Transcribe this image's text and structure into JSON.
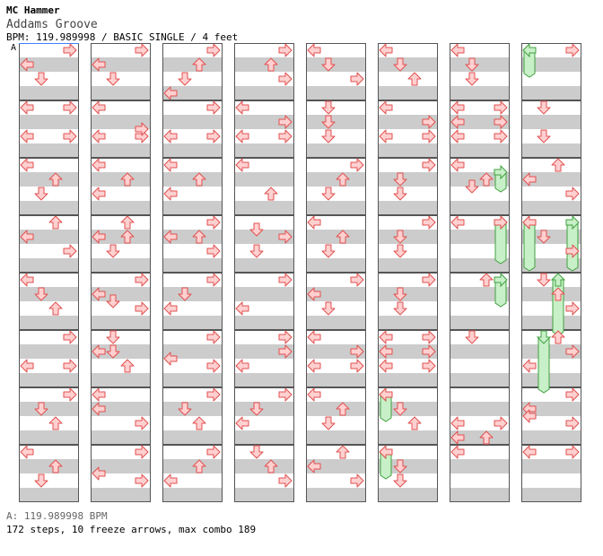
{
  "header": {
    "artist": "MC Hammer",
    "title": "Addams Groove",
    "info": "BPM: 119.989998 / BASIC SINGLE / 4 feet",
    "marker": "A"
  },
  "footer": {
    "bpm_line": "A: 119.989998 BPM",
    "stats": "172 steps, 10 freeze arrows, max combo 189"
  },
  "colors": {
    "arrow_fill": "#ffd0d0",
    "arrow_stroke": "#e05050",
    "freeze_fill": "#c8f0c8",
    "freeze_stroke": "#40a040",
    "stripe": "#cccccc",
    "marker_line": "#4080ff"
  },
  "chart_data": {
    "type": "table",
    "lanes": [
      "left",
      "down",
      "up",
      "right"
    ],
    "columns": 8,
    "measures_per_column": 8,
    "beats_per_measure": 4,
    "notes": [
      {
        "m": 0,
        "b": 0,
        "d": "right"
      },
      {
        "m": 0,
        "b": 0.5,
        "d": "left"
      },
      {
        "m": 0,
        "b": 1,
        "d": "down"
      },
      {
        "m": 1,
        "b": 0,
        "d": "left"
      },
      {
        "m": 1,
        "b": 0,
        "d": "right"
      },
      {
        "m": 1,
        "b": 1,
        "d": "left"
      },
      {
        "m": 1,
        "b": 1,
        "d": "right"
      },
      {
        "m": 2,
        "b": 0,
        "d": "left"
      },
      {
        "m": 2,
        "b": 0.5,
        "d": "up"
      },
      {
        "m": 2,
        "b": 1,
        "d": "down"
      },
      {
        "m": 3,
        "b": 0,
        "d": "up"
      },
      {
        "m": 3,
        "b": 0.5,
        "d": "left"
      },
      {
        "m": 3,
        "b": 1,
        "d": "right"
      },
      {
        "m": 4,
        "b": 0,
        "d": "left"
      },
      {
        "m": 4,
        "b": 0.5,
        "d": "down"
      },
      {
        "m": 4,
        "b": 1,
        "d": "up"
      },
      {
        "m": 5,
        "b": 0,
        "d": "right"
      },
      {
        "m": 5,
        "b": 1,
        "d": "left"
      },
      {
        "m": 5,
        "b": 1,
        "d": "right"
      },
      {
        "m": 6,
        "b": 0,
        "d": "right"
      },
      {
        "m": 6,
        "b": 0.5,
        "d": "down"
      },
      {
        "m": 6,
        "b": 1,
        "d": "up"
      },
      {
        "m": 7,
        "b": 0,
        "d": "left"
      },
      {
        "m": 7,
        "b": 0.5,
        "d": "up"
      },
      {
        "m": 7,
        "b": 1,
        "d": "down"
      },
      {
        "m": 8,
        "b": 0,
        "d": "right"
      },
      {
        "m": 8,
        "b": 0.5,
        "d": "left"
      },
      {
        "m": 8,
        "b": 1,
        "d": "down"
      },
      {
        "m": 9,
        "b": 0,
        "d": "left"
      },
      {
        "m": 9,
        "b": 1,
        "d": "left"
      },
      {
        "m": 9,
        "b": 1,
        "d": "right"
      },
      {
        "m": 9,
        "b": 0.75,
        "d": "right"
      },
      {
        "m": 10,
        "b": 0,
        "d": "left"
      },
      {
        "m": 10,
        "b": 0.5,
        "d": "up"
      },
      {
        "m": 10,
        "b": 1,
        "d": "left"
      },
      {
        "m": 11,
        "b": 0,
        "d": "up"
      },
      {
        "m": 11,
        "b": 0.5,
        "d": "up"
      },
      {
        "m": 11,
        "b": 1,
        "d": "down"
      },
      {
        "m": 11,
        "b": 0.5,
        "d": "left"
      },
      {
        "m": 12,
        "b": 0,
        "d": "right"
      },
      {
        "m": 12,
        "b": 0.5,
        "d": "left"
      },
      {
        "m": 12,
        "b": 0.75,
        "d": "down"
      },
      {
        "m": 12,
        "b": 1,
        "d": "right"
      },
      {
        "m": 13,
        "b": 0,
        "d": "down"
      },
      {
        "m": 13,
        "b": 0.5,
        "d": "down"
      },
      {
        "m": 13,
        "b": 1,
        "d": "up"
      },
      {
        "m": 13,
        "b": 0.5,
        "d": "left"
      },
      {
        "m": 14,
        "b": 0,
        "d": "left"
      },
      {
        "m": 14,
        "b": 0.5,
        "d": "left"
      },
      {
        "m": 14,
        "b": 1,
        "d": "right"
      },
      {
        "m": 15,
        "b": 0,
        "d": "right"
      },
      {
        "m": 15,
        "b": 1,
        "d": "right"
      },
      {
        "m": 15,
        "b": 0.75,
        "d": "left"
      },
      {
        "m": 16,
        "b": 0,
        "d": "right"
      },
      {
        "m": 16,
        "b": 0.5,
        "d": "up"
      },
      {
        "m": 16,
        "b": 1,
        "d": "down"
      },
      {
        "m": 16,
        "b": 1.5,
        "d": "left"
      },
      {
        "m": 17,
        "b": 0,
        "d": "right"
      },
      {
        "m": 17,
        "b": 1,
        "d": "left"
      },
      {
        "m": 17,
        "b": 1,
        "d": "right"
      },
      {
        "m": 18,
        "b": 0,
        "d": "left"
      },
      {
        "m": 18,
        "b": 0.5,
        "d": "up"
      },
      {
        "m": 18,
        "b": 1,
        "d": "left"
      },
      {
        "m": 19,
        "b": 0,
        "d": "right"
      },
      {
        "m": 19,
        "b": 0.5,
        "d": "up"
      },
      {
        "m": 19,
        "b": 1,
        "d": "right"
      },
      {
        "m": 19,
        "b": 0.5,
        "d": "left"
      },
      {
        "m": 20,
        "b": 0,
        "d": "right"
      },
      {
        "m": 20,
        "b": 0.5,
        "d": "down"
      },
      {
        "m": 20,
        "b": 1,
        "d": "left"
      },
      {
        "m": 21,
        "b": 0,
        "d": "right"
      },
      {
        "m": 21,
        "b": 0.75,
        "d": "left"
      },
      {
        "m": 21,
        "b": 1,
        "d": "right"
      },
      {
        "m": 22,
        "b": 0,
        "d": "right"
      },
      {
        "m": 22,
        "b": 0.5,
        "d": "down"
      },
      {
        "m": 22,
        "b": 1,
        "d": "up"
      },
      {
        "m": 23,
        "b": 0,
        "d": "right"
      },
      {
        "m": 23,
        "b": 0.5,
        "d": "up"
      },
      {
        "m": 23,
        "b": 1,
        "d": "left"
      },
      {
        "m": 24,
        "b": 0,
        "d": "right"
      },
      {
        "m": 24,
        "b": 0.5,
        "d": "up"
      },
      {
        "m": 24,
        "b": 1,
        "d": "right"
      },
      {
        "m": 25,
        "b": 0,
        "d": "left"
      },
      {
        "m": 25,
        "b": 1,
        "d": "left"
      },
      {
        "m": 25,
        "b": 1,
        "d": "right"
      },
      {
        "m": 25,
        "b": 0.5,
        "d": "right"
      },
      {
        "m": 26,
        "b": 0,
        "d": "left"
      },
      {
        "m": 26,
        "b": 1,
        "d": "up"
      },
      {
        "m": 27,
        "b": 0.25,
        "d": "down"
      },
      {
        "m": 27,
        "b": 0.5,
        "d": "right"
      },
      {
        "m": 27,
        "b": 1,
        "d": "down"
      },
      {
        "m": 28,
        "b": 0,
        "d": "right"
      },
      {
        "m": 28,
        "b": 1,
        "d": "left"
      },
      {
        "m": 29,
        "b": 0,
        "d": "right"
      },
      {
        "m": 29,
        "b": 1,
        "d": "left"
      },
      {
        "m": 29,
        "b": 0.5,
        "d": "right"
      },
      {
        "m": 30,
        "b": 0,
        "d": "right"
      },
      {
        "m": 30,
        "b": 0.5,
        "d": "down"
      },
      {
        "m": 30,
        "b": 1,
        "d": "left"
      },
      {
        "m": 31,
        "b": 0,
        "d": "down"
      },
      {
        "m": 31,
        "b": 0.5,
        "d": "up"
      },
      {
        "m": 31,
        "b": 1,
        "d": "right"
      },
      {
        "m": 32,
        "b": 0,
        "d": "left"
      },
      {
        "m": 32,
        "b": 0.5,
        "d": "down"
      },
      {
        "m": 32,
        "b": 1,
        "d": "right"
      },
      {
        "m": 33,
        "b": 0,
        "d": "down"
      },
      {
        "m": 33,
        "b": 0.5,
        "d": "down"
      },
      {
        "m": 33,
        "b": 1,
        "d": "down"
      },
      {
        "m": 34,
        "b": 0,
        "d": "right"
      },
      {
        "m": 34,
        "b": 0.5,
        "d": "up"
      },
      {
        "m": 34,
        "b": 1,
        "d": "down"
      },
      {
        "m": 35,
        "b": 0,
        "d": "left"
      },
      {
        "m": 35,
        "b": 0.5,
        "d": "up"
      },
      {
        "m": 35,
        "b": 1,
        "d": "down"
      },
      {
        "m": 36,
        "b": 0,
        "d": "right"
      },
      {
        "m": 36,
        "b": 0.5,
        "d": "left"
      },
      {
        "m": 36,
        "b": 1,
        "d": "down"
      },
      {
        "m": 37,
        "b": 0,
        "d": "left"
      },
      {
        "m": 37,
        "b": 0.5,
        "d": "right"
      },
      {
        "m": 37,
        "b": 1,
        "d": "left"
      },
      {
        "m": 37,
        "b": 1,
        "d": "right"
      },
      {
        "m": 38,
        "b": 0,
        "d": "left"
      },
      {
        "m": 38,
        "b": 0.5,
        "d": "up"
      },
      {
        "m": 38,
        "b": 1,
        "d": "down"
      },
      {
        "m": 39,
        "b": 0,
        "d": "up"
      },
      {
        "m": 39,
        "b": 0.5,
        "d": "left"
      },
      {
        "m": 39,
        "b": 1,
        "d": "right"
      },
      {
        "m": 40,
        "b": 0,
        "d": "left"
      },
      {
        "m": 40,
        "b": 0.5,
        "d": "down"
      },
      {
        "m": 40,
        "b": 1,
        "d": "up"
      },
      {
        "m": 41,
        "b": 0,
        "d": "left"
      },
      {
        "m": 41,
        "b": 0.5,
        "d": "right"
      },
      {
        "m": 41,
        "b": 1,
        "d": "left"
      },
      {
        "m": 41,
        "b": 1,
        "d": "right"
      },
      {
        "m": 42,
        "b": 0,
        "d": "right"
      },
      {
        "m": 42,
        "b": 0.5,
        "d": "down"
      },
      {
        "m": 42,
        "b": 1,
        "d": "down"
      },
      {
        "m": 43,
        "b": 0,
        "d": "right"
      },
      {
        "m": 43,
        "b": 0.5,
        "d": "down"
      },
      {
        "m": 43,
        "b": 1,
        "d": "down"
      },
      {
        "m": 44,
        "b": 0,
        "d": "right"
      },
      {
        "m": 44,
        "b": 0.5,
        "d": "down"
      },
      {
        "m": 44,
        "b": 1,
        "d": "down"
      },
      {
        "m": 45,
        "b": 0,
        "d": "left"
      },
      {
        "m": 45,
        "b": 0,
        "d": "right"
      },
      {
        "m": 45,
        "b": 0.5,
        "d": "left"
      },
      {
        "m": 45,
        "b": 0.5,
        "d": "right"
      },
      {
        "m": 45,
        "b": 1,
        "d": "left"
      },
      {
        "m": 45,
        "b": 1,
        "d": "right"
      },
      {
        "m": 46,
        "b": 0,
        "d": "left"
      },
      {
        "m": 46,
        "b": 0.5,
        "d": "down"
      },
      {
        "m": 46,
        "b": 1,
        "d": "up"
      },
      {
        "m": 47,
        "b": 0,
        "d": "left"
      },
      {
        "m": 47,
        "b": 0.5,
        "d": "down"
      },
      {
        "m": 47,
        "b": 1,
        "d": "down"
      },
      {
        "m": 48,
        "b": 0,
        "d": "left"
      },
      {
        "m": 48,
        "b": 0.5,
        "d": "down"
      },
      {
        "m": 48,
        "b": 1,
        "d": "down"
      },
      {
        "m": 49,
        "b": 0,
        "d": "left"
      },
      {
        "m": 49,
        "b": 0,
        "d": "right"
      },
      {
        "m": 49,
        "b": 0.5,
        "d": "left"
      },
      {
        "m": 49,
        "b": 0.5,
        "d": "right"
      },
      {
        "m": 49,
        "b": 1,
        "d": "left"
      },
      {
        "m": 49,
        "b": 1,
        "d": "right"
      },
      {
        "m": 50,
        "b": 0,
        "d": "left"
      },
      {
        "m": 50,
        "b": 0.5,
        "d": "up"
      },
      {
        "m": 50,
        "b": 0.75,
        "d": "down"
      },
      {
        "m": 51,
        "b": 0,
        "d": "left"
      },
      {
        "m": 51,
        "b": 0,
        "d": "right"
      },
      {
        "m": 52,
        "b": 0,
        "d": "up"
      },
      {
        "m": 53,
        "b": 0,
        "d": "down"
      },
      {
        "m": 54,
        "b": 1,
        "d": "left"
      },
      {
        "m": 54,
        "b": 1,
        "d": "right"
      },
      {
        "m": 54,
        "b": 1.5,
        "d": "left"
      },
      {
        "m": 54,
        "b": 1.5,
        "d": "up"
      },
      {
        "m": 55,
        "b": 0,
        "d": "left"
      },
      {
        "m": 56,
        "b": 0,
        "d": "right"
      },
      {
        "m": 57,
        "b": 0,
        "d": "down"
      },
      {
        "m": 57,
        "b": 1,
        "d": "down"
      },
      {
        "m": 58,
        "b": 0,
        "d": "up"
      },
      {
        "m": 58,
        "b": 0.5,
        "d": "left"
      },
      {
        "m": 58,
        "b": 1,
        "d": "right"
      },
      {
        "m": 59,
        "b": 0,
        "d": "left"
      },
      {
        "m": 59,
        "b": 0.5,
        "d": "down"
      },
      {
        "m": 59,
        "b": 1,
        "d": "right"
      },
      {
        "m": 60,
        "b": 0,
        "d": "down"
      },
      {
        "m": 60,
        "b": 0.5,
        "d": "up"
      },
      {
        "m": 60,
        "b": 1,
        "d": "right"
      },
      {
        "m": 61,
        "b": 0,
        "d": "up"
      },
      {
        "m": 61,
        "b": 0.5,
        "d": "right"
      },
      {
        "m": 61,
        "b": 1,
        "d": "left"
      },
      {
        "m": 62,
        "b": 0,
        "d": "right"
      },
      {
        "m": 62,
        "b": 0.5,
        "d": "left"
      },
      {
        "m": 62,
        "b": 1,
        "d": "right"
      },
      {
        "m": 62,
        "b": 0.75,
        "d": "left"
      },
      {
        "m": 63,
        "b": 0,
        "d": "left"
      },
      {
        "m": 63,
        "b": 0,
        "d": "right"
      }
    ],
    "freezes": [
      {
        "m": 46,
        "b0": 0,
        "b1": 0.75,
        "d": "left"
      },
      {
        "m": 47,
        "b0": 0,
        "b1": 0.75,
        "d": "left"
      },
      {
        "m": 50,
        "b0": 0.25,
        "b1": 0.75,
        "d": "right"
      },
      {
        "m": 51,
        "b0": 0,
        "b1": 1.25,
        "d": "right"
      },
      {
        "m": 52,
        "b0": 0,
        "b1": 0.75,
        "d": "right"
      },
      {
        "m": 56,
        "b0": 0,
        "b1": 0.75,
        "d": "left"
      },
      {
        "m": 59,
        "b0": 0,
        "b1": 1.5,
        "d": "left"
      },
      {
        "m": 59,
        "b0": 0,
        "b1": 1.5,
        "d": "right"
      },
      {
        "m": 60,
        "b0": 0,
        "b1": 1.75,
        "d": "up"
      },
      {
        "m": 61,
        "b0": 0,
        "b1": 1.75,
        "d": "down"
      }
    ]
  }
}
